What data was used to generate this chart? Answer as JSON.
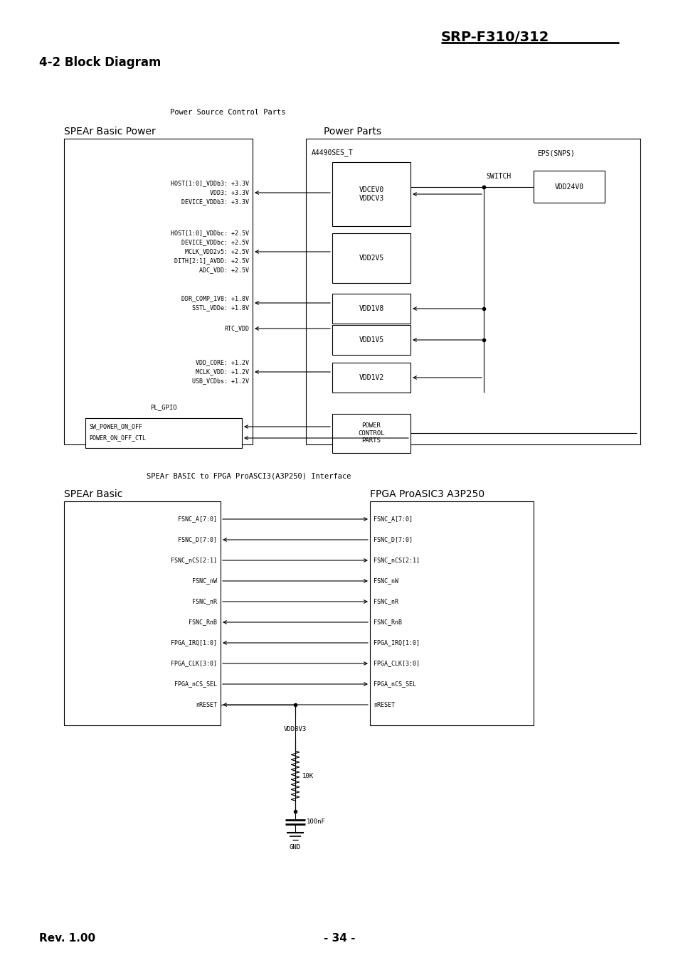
{
  "title": "SRP-F310/312",
  "section_title": "4-2 Block Diagram",
  "page_label": "- 34 -",
  "rev_label": "Rev. 1.00",
  "diagram1_title": "Power Source Control Parts",
  "spear_label": "SPEAr Basic Power",
  "power_parts_label": "Power Parts",
  "a4490_label": "A4490SES_T",
  "eps_label": "EPS(SNPS)",
  "switch_label": "SWITCH",
  "spear_signals_3v3": [
    "HOST[1:0]_VDDb3: +3.3V",
    "VDD3: +3.3V",
    "DEVICE_VDDb3: +3.3V"
  ],
  "spear_signals_2v5": [
    "HOST[1:0]_VDDbc: +2.5V",
    "DEVICE_VDDbc: +2.5V",
    "MCLK_VDD2v5: +2.5V",
    "DITH[2:1]_AVDD: +2.5V",
    "ADC_VDD: +2.5V"
  ],
  "spear_signals_1v8": [
    "DDR_COMP_1V8: +1.8V",
    "SSTL_VDDe: +1.8V"
  ],
  "spear_signal_rtc": "RTC_VDD",
  "spear_signals_1v2": [
    "VDD_CORE: +1.2V",
    "MCLK_VDD: +1.2V",
    "USB_VCDbs: +1.2V"
  ],
  "spear_signal_gpio": "PL_GPIO",
  "vbox_labels": [
    "VDCEV0\nVDDCV3",
    "VDD2V5",
    "VDD1V8",
    "VDD1V5",
    "VDD1V2"
  ],
  "power_control_label": "POWER\nCONTROL\nPARTS",
  "sw_signals": [
    "SW_POWER_ON_OFF",
    "POWER_ON_OFF_CTL"
  ],
  "vdd24v0_label": "VDD24V0",
  "diagram2_title": "SPEAr BASIC to FPGA ProASCI3(A3P250) Interface",
  "spear_basic_label": "SPEAr Basic",
  "fpga_label": "FPGA ProASIC3 A3P250",
  "interface_signals": [
    "FSNC_A[7:0]",
    "FSNC_D[7:0]",
    "FSNC_nCS[2:1]",
    "FSNC_nW",
    "FSNC_nR",
    "FSNC_RnB",
    "FPGA_IRQ[1:0]",
    "FPGA_CLK[3:0]",
    "FPGA_nCS_SEL",
    "nRESET"
  ],
  "signal_directions": [
    "right",
    "left",
    "right",
    "right",
    "right",
    "left",
    "left",
    "right",
    "right",
    "left"
  ],
  "vdd3v3_label": "VDD3V3",
  "r_label": "10K",
  "c_label": "100nF",
  "gnd_label": "GND"
}
